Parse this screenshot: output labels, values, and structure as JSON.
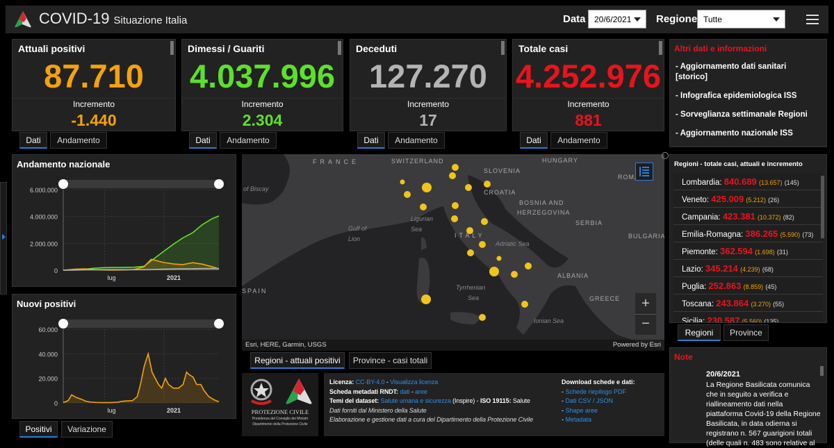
{
  "header": {
    "title": "COVID-19",
    "subtitle": "Situazione Italia",
    "data_label": "Data",
    "date_value": "20/6/2021",
    "region_label": "Regione",
    "region_value": "Tutte",
    "logo_icon": "protezione-civile-logo",
    "menu_icon": "hamburger-icon"
  },
  "colors": {
    "orange": "#f5a20a",
    "green": "#5de02c",
    "gray": "#b4b4b4",
    "red": "#e8141c",
    "accent": "#2a7fd4"
  },
  "cards": [
    {
      "title": "Attuali positivi",
      "value": "87.710",
      "inc_label": "Incremento",
      "inc": "-1.440",
      "color": "#f5a20a",
      "tabs": [
        "Dati",
        "Andamento"
      ]
    },
    {
      "title": "Dimessi / Guariti",
      "value": "4.037.996",
      "inc_label": "Incremento",
      "inc": "2.304",
      "color": "#5de02c",
      "tabs": [
        "Dati",
        "Andamento"
      ]
    },
    {
      "title": "Deceduti",
      "value": "127.270",
      "inc_label": "Incremento",
      "inc": "17",
      "color": "#b4b4b4",
      "tabs": [
        "Dati",
        "Andamento"
      ]
    },
    {
      "title": "Totale casi",
      "value": "4.252.976",
      "inc_label": "Incremento",
      "inc": "881",
      "color": "#e8141c",
      "tabs": [
        "Dati",
        "Andamento"
      ]
    }
  ],
  "info": {
    "title": "Altri dati e informazioni",
    "items": [
      "- Aggiornamento dati sanitari [storico]",
      "- Infografica epidemiologica ISS",
      "- Sorveglianza settimanale Regioni",
      "- Aggiornamento nazionale ISS"
    ]
  },
  "chart_data": [
    {
      "type": "area",
      "title": "Andamento nazionale",
      "x_ticks": [
        "lug",
        "2021"
      ],
      "ylim": [
        0,
        6000000
      ],
      "y_ticks": [
        "0",
        "2.000.000",
        "4.000.000",
        "6.000.000"
      ],
      "grid": true,
      "x": [
        "2020-02-24",
        "2020-03-31",
        "2020-04-30",
        "2020-05-31",
        "2020-06-30",
        "2020-07-31",
        "2020-08-31",
        "2020-09-30",
        "2020-10-31",
        "2020-11-22",
        "2020-12-31",
        "2021-01-31",
        "2021-02-28",
        "2021-03-31",
        "2021-04-30",
        "2021-05-31",
        "2021-06-20"
      ],
      "series": [
        {
          "color": "#5de02c",
          "values": [
            1,
            13000,
            75000,
            150000,
            190000,
            200000,
            210000,
            225000,
            290000,
            700000,
            1400000,
            1950000,
            2400000,
            2800000,
            3400000,
            3850000,
            4038000
          ]
        },
        {
          "color": "#f5a20a",
          "values": [
            200,
            77000,
            101000,
            43000,
            16000,
            12000,
            21000,
            51000,
            255000,
            805000,
            575000,
            460000,
            420000,
            560000,
            450000,
            250000,
            87710
          ]
        },
        {
          "color": "#b4b4b4",
          "values": [
            7,
            12400,
            27900,
            33400,
            34800,
            35100,
            35500,
            35900,
            38600,
            50000,
            74200,
            88500,
            97700,
            109300,
            120800,
            126000,
            127270
          ]
        }
      ]
    },
    {
      "type": "area",
      "title": "Nuovi positivi",
      "x_ticks": [
        "lug",
        "2021"
      ],
      "ylim": [
        0,
        60000
      ],
      "y_ticks": [
        "0",
        "20.000",
        "40.000",
        "60.000"
      ],
      "grid": true,
      "x": [
        "2020-02-24",
        "2020-03-10",
        "2020-03-21",
        "2020-04-05",
        "2020-04-20",
        "2020-05-05",
        "2020-05-20",
        "2020-06-10",
        "2020-07-01",
        "2020-07-20",
        "2020-08-10",
        "2020-08-25",
        "2020-09-10",
        "2020-09-25",
        "2020-10-10",
        "2020-10-20",
        "2020-11-01",
        "2020-11-13",
        "2020-11-25",
        "2020-12-05",
        "2020-12-15",
        "2020-12-25",
        "2021-01-05",
        "2021-01-15",
        "2021-01-30",
        "2021-02-15",
        "2021-03-01",
        "2021-03-12",
        "2021-03-20",
        "2021-04-01",
        "2021-04-12",
        "2021-04-25",
        "2021-05-05",
        "2021-05-20",
        "2021-06-05",
        "2021-06-20"
      ],
      "series": [
        {
          "color": "#f5a20a",
          "values": [
            200,
            1800,
            6500,
            4300,
            3000,
            1200,
            600,
            300,
            200,
            250,
            500,
            1300,
            1600,
            1800,
            5000,
            15000,
            30000,
            40000,
            25000,
            20000,
            15000,
            12000,
            20000,
            15000,
            12000,
            12000,
            15000,
            25000,
            23000,
            21000,
            15000,
            15000,
            10000,
            5000,
            2500,
            900
          ]
        }
      ]
    }
  ],
  "chart_tabs": [
    "Positivi",
    "Variazione"
  ],
  "map": {
    "labels": [
      "FRANCE",
      "SWITZERLAND",
      "SLOVENIA",
      "HUNGARY",
      "CROATIA",
      "BOSNIA AND",
      "HERZEGOVINA",
      "SERBIA",
      "ROMA",
      "BULGARIA",
      "ITALY",
      "ALBANIA",
      "GREECE",
      "SPAIN"
    ],
    "seas": [
      "of Biscay",
      "Gulf of",
      "Lion",
      "Ligurian",
      "Sea",
      "Adriatic Sea",
      "Tyrrhenian",
      "Sea",
      "Ionian Sea"
    ],
    "attribution": "Esri, HERE, Garmin, USGS",
    "powered": "Powered by Esri",
    "zoom_in": "+",
    "zoom_out": "−",
    "tabs": [
      "Regioni - attuali positivi",
      "Province - casi totali"
    ]
  },
  "regions": {
    "title": "Regioni - totale casi, attuali e incremento",
    "tabs": [
      "Regioni",
      "Province"
    ],
    "items": [
      {
        "name": "Lombardia:",
        "total": "840.689",
        "attuali": "(13.657)",
        "inc": "(145)"
      },
      {
        "name": "Veneto:",
        "total": "425.009",
        "attuali": "(5.212)",
        "inc": "(26)"
      },
      {
        "name": "Campania:",
        "total": "423.381",
        "attuali": "(10.372)",
        "inc": "(82)"
      },
      {
        "name": "Emilia-Romagna:",
        "total": "386.265",
        "attuali": "(5.590)",
        "inc": "(73)"
      },
      {
        "name": "Piemonte:",
        "total": "362.594",
        "attuali": "(1.698)",
        "inc": "(31)"
      },
      {
        "name": "Lazio:",
        "total": "345.214",
        "attuali": "(4.239)",
        "inc": "(68)"
      },
      {
        "name": "Puglia:",
        "total": "252.863",
        "attuali": "(8.859)",
        "inc": "(45)"
      },
      {
        "name": "Toscana:",
        "total": "243.864",
        "attuali": "(3.270)",
        "inc": "(55)"
      },
      {
        "name": "Sicilia:",
        "total": "230.587",
        "attuali": "(5.560)",
        "inc": "(135)"
      }
    ]
  },
  "note": {
    "title": "Note",
    "date": "20/6/2021",
    "text": "La Regione Basilicata comunica che in seguito a verifica e riallineamento dati nella piattaforma Covid-19 della Regione Basilicata, in data odierna si registrano n. 567 guarigioni totali (delle quali n. 483 sono relative al"
  },
  "footer": {
    "logo_text": "PROTEZIONE CIVILE",
    "logo_sub1": "Presidenza del Consiglio dei Ministri",
    "logo_sub2": "Dipartimento della Protezione Civile",
    "licenza_label": "Licenza:",
    "licenza": "CC-BY-4.0",
    "licenza_sep": " - ",
    "licenza_link": "Visualizza licenza",
    "rndt_label": "Scheda metadati RNDT:",
    "rndt_dati": "dati",
    "rndt_sep": " - ",
    "rndt_aree": "aree",
    "temi_label": "Temi del dataset:",
    "temi_link": "Salute umana e sicurezza",
    "temi_inspire": " (Inspire) - ",
    "iso_label": "ISO 19115:",
    "iso_value": " Salute",
    "fonte": "Dati forniti dal Ministero della Salute",
    "elaborazione": "Elaborazione e gestione dati a cura del Dipartimento della Protezione Civile",
    "download_title": "Download schede e dati:",
    "downloads": [
      "Schede riepilogo PDF",
      "Dati CSV / JSON",
      "Shape aree",
      "Metadata"
    ]
  }
}
